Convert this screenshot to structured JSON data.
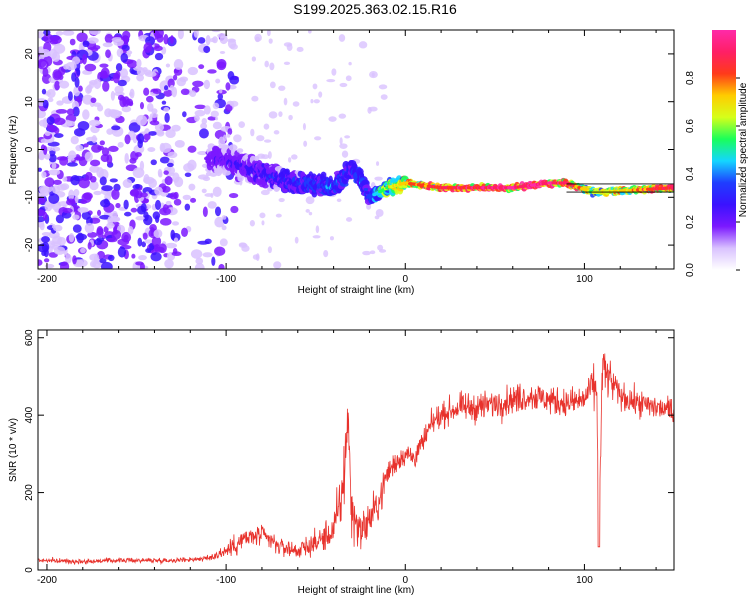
{
  "title": "S199.2025.363.02.15.R16",
  "colors": {
    "line": "#e8322c",
    "axis": "#000000",
    "colormap": [
      "#ffffff",
      "#d9c2ff",
      "#7b18ff",
      "#3a12ff",
      "#1f3dff",
      "#14d6ff",
      "#1aff5a",
      "#d6ff1a",
      "#ffcc00",
      "#ff3a1a",
      "#ff1f66",
      "#ff2aa8"
    ]
  },
  "chart_data": [
    {
      "type": "heatmap",
      "title": "",
      "xlabel": "Height of straight line (km)",
      "ylabel": "Frequency (Hz)",
      "xlim": [
        -205,
        150
      ],
      "ylim": [
        -25,
        25
      ],
      "x_ticks": [
        -200,
        -100,
        0,
        100
      ],
      "y_ticks": [
        20,
        10,
        0,
        -10,
        -20
      ],
      "x_tick_labels": [
        "-200",
        "-100",
        "0",
        "100"
      ],
      "y_tick_labels": [
        "20",
        "10",
        "0",
        "-10",
        "-20"
      ],
      "colorbar": {
        "label": "Normalized spectral amplitude",
        "range": [
          0,
          1
        ],
        "ticks": [
          0.0,
          0.2,
          0.4,
          0.6,
          0.8
        ],
        "tick_labels": [
          "0.0",
          "0.2",
          "0.4",
          "0.6",
          "0.8"
        ]
      },
      "ridge": {
        "description_points_x": [
          -100,
          -80,
          -60,
          -40,
          -30,
          -25,
          -20,
          -10,
          0,
          20,
          40,
          60,
          80,
          90,
          105,
          150
        ],
        "description_points_freq": [
          -2,
          -5,
          -7,
          -8,
          -4,
          -6,
          -10,
          -8,
          -7,
          -8,
          -8,
          -8,
          -7,
          -7,
          -9,
          -8
        ],
        "amplitude": [
          0.2,
          0.25,
          0.3,
          0.35,
          0.3,
          0.35,
          0.3,
          0.6,
          0.7,
          0.85,
          0.9,
          0.95,
          0.95,
          0.9,
          0.6,
          0.9
        ]
      },
      "noise_region_x": [
        -205,
        -110
      ]
    },
    {
      "type": "line",
      "title": "",
      "xlabel": "Height of straight line (km)",
      "ylabel": "SNR (10 * v/v)",
      "xlim": [
        -205,
        150
      ],
      "ylim": [
        0,
        620
      ],
      "x_ticks": [
        -200,
        -100,
        0,
        100
      ],
      "y_ticks": [
        0,
        200,
        400,
        600
      ],
      "x_tick_labels": [
        "-200",
        "-100",
        "0",
        "100"
      ],
      "y_tick_labels": [
        "0",
        "200",
        "400",
        "600"
      ],
      "series": [
        {
          "name": "SNR",
          "x": [
            -205,
            -180,
            -160,
            -130,
            -110,
            -100,
            -90,
            -80,
            -70,
            -60,
            -50,
            -40,
            -35,
            -32,
            -30,
            -25,
            -20,
            -15,
            -10,
            -5,
            0,
            5,
            10,
            15,
            20,
            30,
            40,
            50,
            60,
            70,
            80,
            90,
            100,
            105,
            107,
            108,
            110,
            120,
            130,
            140,
            150
          ],
          "values": [
            25,
            22,
            25,
            25,
            30,
            50,
            80,
            90,
            60,
            50,
            70,
            100,
            200,
            400,
            150,
            100,
            130,
            170,
            250,
            280,
            300,
            290,
            330,
            380,
            400,
            420,
            420,
            430,
            440,
            450,
            440,
            430,
            440,
            480,
            450,
            60,
            520,
            450,
            430,
            420,
            410
          ],
          "noise_amplitude": [
            8,
            8,
            8,
            8,
            10,
            30,
            40,
            35,
            30,
            30,
            40,
            60,
            120,
            150,
            90,
            60,
            70,
            60,
            50,
            40,
            40,
            40,
            40,
            40,
            40,
            45,
            50,
            50,
            50,
            50,
            50,
            50,
            50,
            60,
            80,
            0,
            90,
            45,
            45,
            45,
            45
          ]
        }
      ]
    }
  ]
}
